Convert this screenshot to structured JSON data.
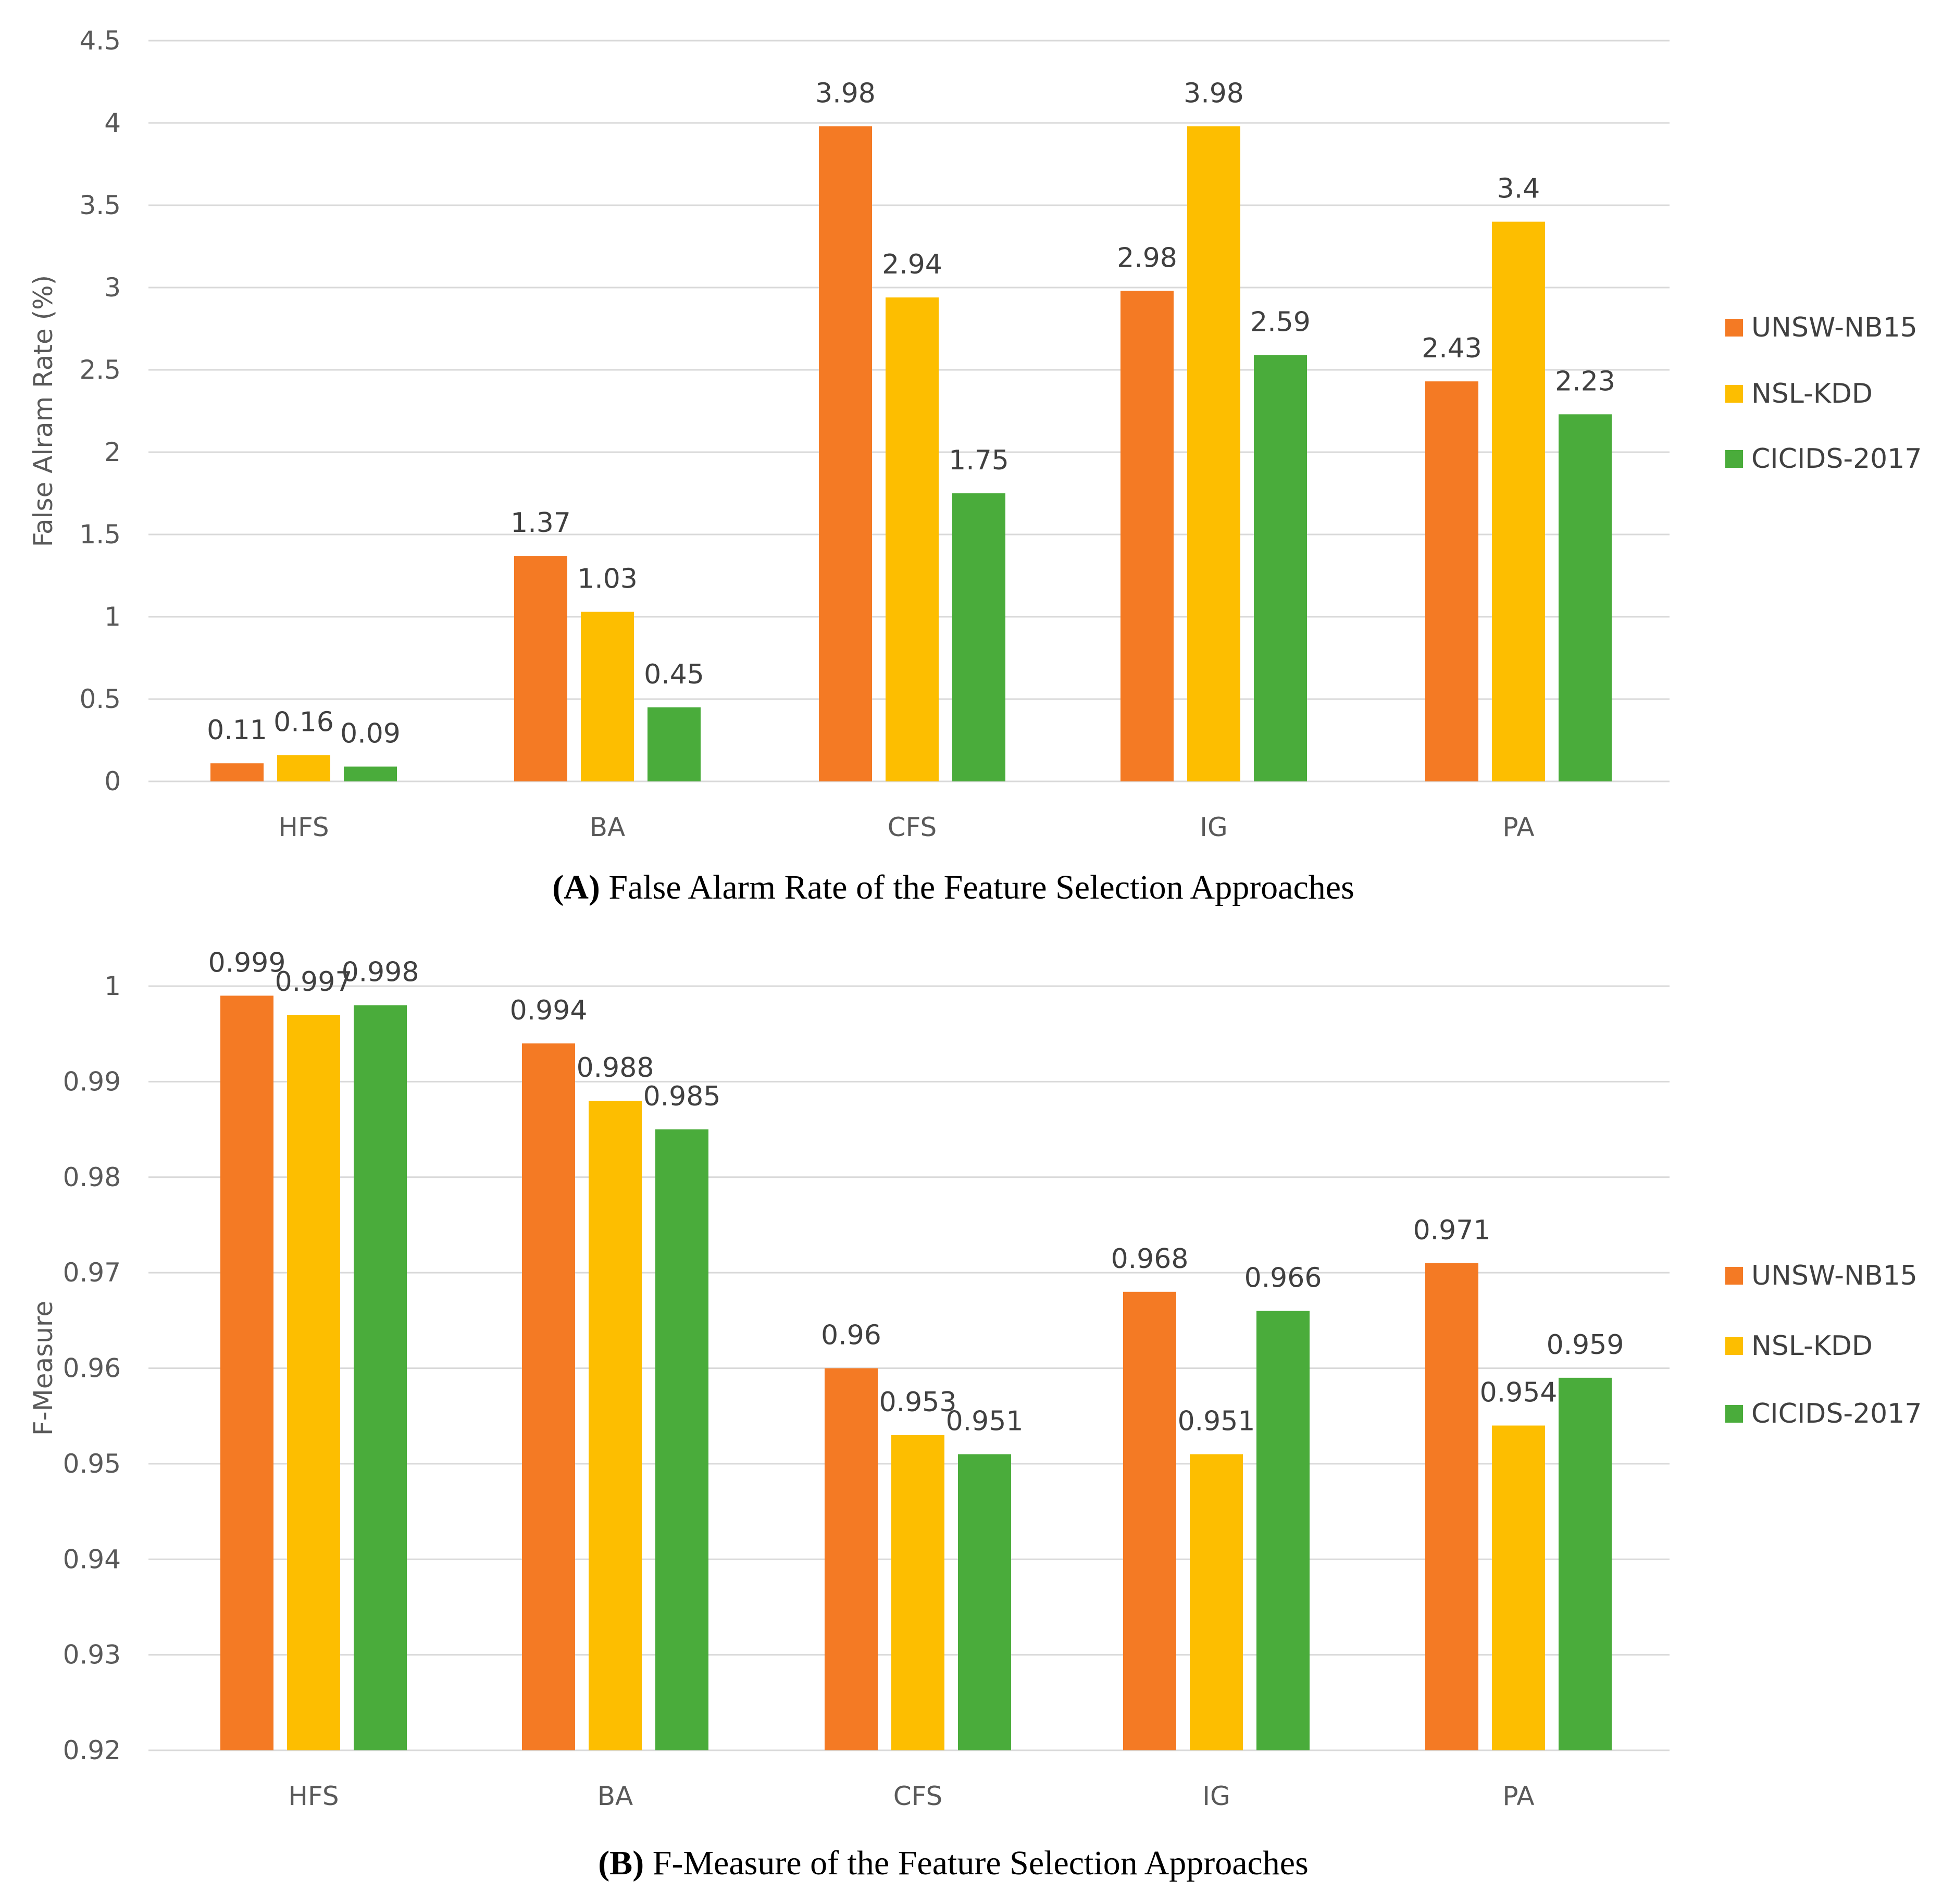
{
  "chart_data": [
    {
      "type": "bar",
      "caption_tag": "(A)",
      "caption_text": " False Alarm Rate of the Feature Selection Approaches",
      "xlabel": "",
      "ylabel": "False Alram Rate (%)",
      "ylim": [
        0,
        4.5
      ],
      "yticks": [
        "0",
        "0.5",
        "1",
        "1.5",
        "2",
        "2.5",
        "3",
        "3.5",
        "4",
        "4.5"
      ],
      "ytick_values": [
        0,
        0.5,
        1,
        1.5,
        2,
        2.5,
        3,
        3.5,
        4,
        4.5
      ],
      "grid": true,
      "legend_position": "right",
      "categories": [
        "HFS",
        "BA",
        "CFS",
        "IG",
        "PA"
      ],
      "series": [
        {
          "name": "UNSW-NB15",
          "color": "#F47A24",
          "values": [
            0.11,
            1.37,
            3.98,
            2.98,
            2.43
          ],
          "labels": [
            "0.11",
            "1.37",
            "3.98",
            "2.98",
            "2.43"
          ]
        },
        {
          "name": "NSL-KDD",
          "color": "#FDBE00",
          "values": [
            0.16,
            1.03,
            2.94,
            3.98,
            3.4
          ],
          "labels": [
            "0.16",
            "1.03",
            "2.94",
            "3.98",
            "3.4"
          ]
        },
        {
          "name": "CICIDS-2017",
          "color": "#4AAC3B",
          "values": [
            0.09,
            0.45,
            1.75,
            2.59,
            2.23
          ],
          "labels": [
            "0.09",
            "0.45",
            "1.75",
            "2.59",
            "2.23"
          ]
        }
      ]
    },
    {
      "type": "bar",
      "caption_tag": "(B)",
      "caption_text": " F-Measure of the Feature Selection Approaches",
      "xlabel": "",
      "ylabel": "F-Measure",
      "ylim": [
        0.92,
        1.0
      ],
      "yticks": [
        "0.92",
        "0.93",
        "0.94",
        "0.95",
        "0.96",
        "0.97",
        "0.98",
        "0.99",
        "1"
      ],
      "ytick_values": [
        0.92,
        0.93,
        0.94,
        0.95,
        0.96,
        0.97,
        0.98,
        0.99,
        1.0
      ],
      "grid": true,
      "legend_position": "right",
      "categories": [
        "HFS",
        "BA",
        "CFS",
        "IG",
        "PA"
      ],
      "series": [
        {
          "name": "UNSW-NB15",
          "color": "#F47A24",
          "values": [
            0.999,
            0.994,
            0.96,
            0.968,
            0.971
          ],
          "labels": [
            "0.999",
            "0.994",
            "0.96",
            "0.968",
            "0.971"
          ]
        },
        {
          "name": "NSL-KDD",
          "color": "#FDBE00",
          "values": [
            0.997,
            0.988,
            0.953,
            0.951,
            0.954
          ],
          "labels": [
            "0.997",
            "0.988",
            "0.953",
            "0.951",
            "0.954"
          ]
        },
        {
          "name": "CICIDS-2017",
          "color": "#4AAC3B",
          "values": [
            0.998,
            0.985,
            0.951,
            0.966,
            0.959
          ],
          "labels": [
            "0.998",
            "0.985",
            "0.951",
            "0.966",
            "0.959"
          ]
        }
      ]
    }
  ]
}
